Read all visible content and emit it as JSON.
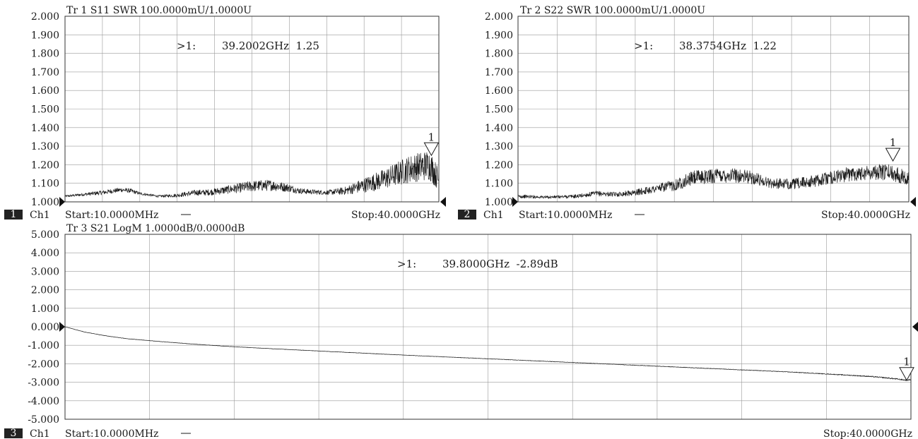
{
  "chart_data": [
    {
      "type": "line",
      "trace": "Tr 1",
      "title": "Tr 1   S11 SWR 100.0000mU/1.0000U",
      "yticks": [
        "2.000",
        "1.900",
        "1.800",
        "1.700",
        "1.600",
        "1.500",
        "1.400",
        "1.300",
        "1.200",
        "1.100",
        "1.000"
      ],
      "ylim": [
        1.0,
        2.0
      ],
      "xlim": [
        0.01,
        40.0
      ],
      "x_unit": "GHz",
      "grid": true,
      "channel_number": "1",
      "channel_label": "Ch1",
      "start_label": "Start:10.0000MHz",
      "stop_label": "Stop:40.0000GHz",
      "marker": {
        "number": "1",
        "x": 39.2002,
        "y": 1.25,
        "readout_prefix": ">1:",
        "readout": "39.2002GHz  1.25"
      },
      "series": [
        {
          "x": [
            0.01,
            2,
            4,
            6,
            7,
            8,
            10,
            12,
            14,
            15,
            16,
            18,
            20,
            22,
            24,
            25,
            26,
            28,
            30,
            32,
            34,
            35,
            36,
            37,
            38,
            39,
            40
          ],
          "y": [
            1.03,
            1.04,
            1.05,
            1.065,
            1.06,
            1.045,
            1.03,
            1.035,
            1.05,
            1.05,
            1.055,
            1.07,
            1.085,
            1.09,
            1.075,
            1.06,
            1.055,
            1.05,
            1.06,
            1.09,
            1.12,
            1.14,
            1.16,
            1.18,
            1.19,
            1.2,
            1.12
          ],
          "ripple": [
            0.006,
            0.008,
            0.012,
            0.012,
            0.012,
            0.008,
            0.006,
            0.01,
            0.016,
            0.016,
            0.018,
            0.024,
            0.03,
            0.03,
            0.022,
            0.016,
            0.014,
            0.012,
            0.022,
            0.04,
            0.055,
            0.06,
            0.07,
            0.075,
            0.08,
            0.085,
            0.06
          ]
        }
      ]
    },
    {
      "type": "line",
      "trace": "Tr 2",
      "title": "Tr 2   S22 SWR 100.0000mU/1.0000U",
      "yticks": [
        "2.000",
        "1.900",
        "1.800",
        "1.700",
        "1.600",
        "1.500",
        "1.400",
        "1.300",
        "1.200",
        "1.100",
        "1.000"
      ],
      "ylim": [
        1.0,
        2.0
      ],
      "xlim": [
        0.01,
        40.0
      ],
      "x_unit": "GHz",
      "grid": true,
      "channel_number": "2",
      "channel_label": "Ch1",
      "start_label": "Start:10.0000MHz",
      "stop_label": "Stop:40.0000GHz",
      "marker": {
        "number": "1",
        "x": 38.3754,
        "y": 1.22,
        "readout_prefix": ">1:",
        "readout": "38.3754GHz  1.22"
      },
      "series": [
        {
          "x": [
            0.01,
            3,
            6,
            8,
            10,
            12,
            14,
            16,
            17,
            18,
            20,
            22,
            24,
            26,
            28,
            30,
            32,
            34,
            36,
            38,
            40
          ],
          "y": [
            1.03,
            1.025,
            1.03,
            1.045,
            1.04,
            1.05,
            1.07,
            1.09,
            1.11,
            1.13,
            1.14,
            1.145,
            1.13,
            1.1,
            1.095,
            1.11,
            1.13,
            1.15,
            1.16,
            1.16,
            1.13
          ],
          "ripple": [
            0.01,
            0.008,
            0.01,
            0.014,
            0.012,
            0.016,
            0.022,
            0.03,
            0.035,
            0.038,
            0.04,
            0.04,
            0.035,
            0.028,
            0.028,
            0.032,
            0.035,
            0.04,
            0.04,
            0.045,
            0.04
          ]
        }
      ]
    },
    {
      "type": "line",
      "trace": "Tr 3",
      "title": "Tr 3   S21 LogM 1.0000dB/0.0000dB",
      "yticks": [
        "5.000",
        "4.000",
        "3.000",
        "2.000",
        "1.000",
        "0.000",
        "-1.000",
        "-2.000",
        "-3.000",
        "-4.000",
        "-5.000"
      ],
      "ylim": [
        -5.0,
        5.0
      ],
      "xlim": [
        0.01,
        40.0
      ],
      "x_unit": "GHz",
      "grid": true,
      "channel_number": "3",
      "channel_label": "Ch1",
      "start_label": "Start:10.0000MHz",
      "stop_label": "Stop:40.0000GHz",
      "marker": {
        "number": "1",
        "x": 39.8,
        "y": -2.89,
        "readout_prefix": ">1:",
        "readout": "39.8000GHz  -2.89dB"
      },
      "series": [
        {
          "x": [
            0.01,
            0.5,
            1,
            2,
            3,
            4,
            6,
            8,
            10,
            12,
            14,
            16,
            18,
            20,
            22,
            24,
            26,
            28,
            30,
            32,
            34,
            36,
            38,
            39,
            39.8,
            40
          ],
          "y": [
            0.0,
            -0.15,
            -0.3,
            -0.5,
            -0.65,
            -0.75,
            -0.93,
            -1.08,
            -1.2,
            -1.31,
            -1.42,
            -1.53,
            -1.63,
            -1.73,
            -1.83,
            -1.93,
            -2.03,
            -2.13,
            -2.23,
            -2.33,
            -2.43,
            -2.55,
            -2.68,
            -2.78,
            -2.89,
            -2.85
          ],
          "ripple": [
            0.0,
            0.01,
            0.01,
            0.01,
            0.01,
            0.01,
            0.01,
            0.01,
            0.01,
            0.01,
            0.01,
            0.01,
            0.01,
            0.012,
            0.012,
            0.012,
            0.012,
            0.014,
            0.014,
            0.016,
            0.018,
            0.02,
            0.03,
            0.035,
            0.035,
            0.035
          ]
        }
      ]
    }
  ]
}
